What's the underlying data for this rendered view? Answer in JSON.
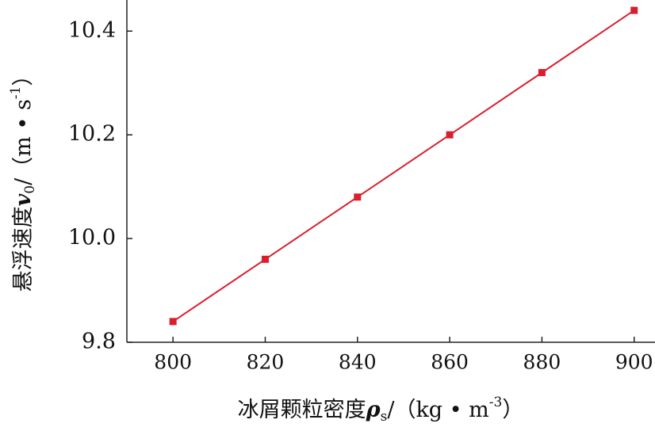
{
  "chart_data": {
    "type": "line",
    "xlabel": [
      "冰屑颗粒密度",
      "ρ",
      "s",
      "/（kg • m",
      "-3",
      "）"
    ],
    "ylabel": [
      "悬浮速度",
      "v",
      "0",
      "/（m • s",
      "-1",
      "）"
    ],
    "x": [
      800,
      820,
      840,
      860,
      880,
      900
    ],
    "series": [
      {
        "name": null,
        "color": "#d91e2e",
        "values": [
          9.84,
          9.96,
          10.08,
          10.2,
          10.32,
          10.44
        ]
      }
    ],
    "xlim": [
      790,
      904
    ],
    "xticks": [
      800,
      820,
      840,
      860,
      880,
      900
    ],
    "ylim": [
      9.8,
      10.46
    ],
    "yticks": [
      9.8,
      {
        "value": 10,
        "label": "10.0"
      },
      10.2,
      10.4
    ],
    "grid": false
  }
}
